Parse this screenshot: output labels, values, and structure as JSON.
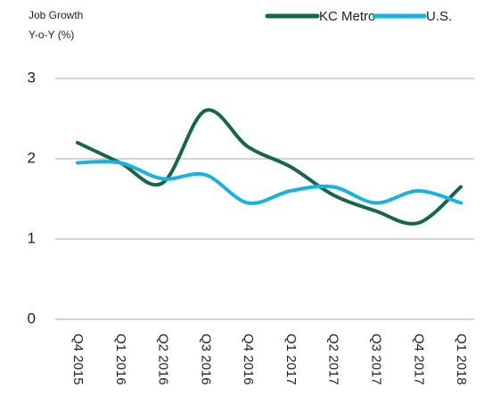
{
  "chart_data": {
    "type": "line",
    "y_label": [
      "Job Growth",
      "Y-o-Y (%)"
    ],
    "categories": [
      "Q4 2015",
      "Q1 2016",
      "Q2 2016",
      "Q3 2016",
      "Q4 2016",
      "Q1 2017",
      "Q2 2017",
      "Q3 2017",
      "Q4 2017",
      "Q1 2018"
    ],
    "series": [
      {
        "name": "KC Metro",
        "color": "#16674a",
        "values": [
          2.2,
          1.95,
          1.7,
          2.6,
          2.15,
          1.9,
          1.55,
          1.35,
          1.2,
          1.65
        ]
      },
      {
        "name": "U.S.",
        "color": "#19b2df",
        "values": [
          1.95,
          1.95,
          1.75,
          1.8,
          1.45,
          1.6,
          1.65,
          1.45,
          1.6,
          1.45
        ]
      }
    ],
    "ylim": [
      0,
      3
    ],
    "yticks": [
      0,
      1,
      2,
      3
    ],
    "grid": true,
    "legend": "top-right"
  }
}
